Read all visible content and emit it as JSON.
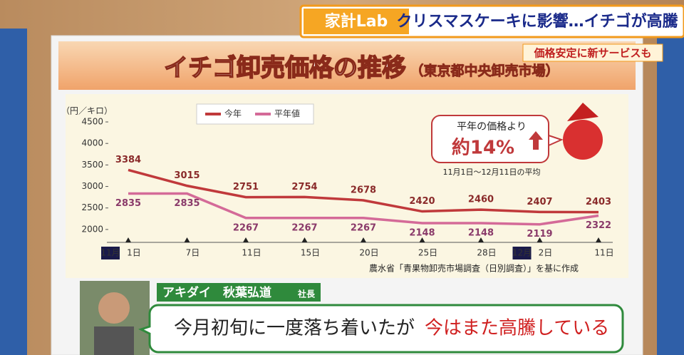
{
  "banner": {
    "logo": "家計Lab",
    "headline": "クリスマスケーキに影響…イチゴが高騰",
    "subheadline": "価格安定に新サービスも"
  },
  "chart_data": {
    "type": "line",
    "title": "イチゴ卸売価格の推移",
    "subtitle": "（東京都中央卸売市場）",
    "y_label": "（円／キロ）",
    "categories": [
      "1日",
      "7日",
      "11日",
      "15日",
      "20日",
      "25日",
      "28日",
      "2日",
      "11日"
    ],
    "months": [
      "11月",
      null,
      null,
      null,
      null,
      null,
      null,
      "12月",
      null
    ],
    "series": [
      {
        "name": "今年",
        "color": "#c0393b",
        "values": [
          3384,
          3015,
          2751,
          2754,
          2678,
          2420,
          2460,
          2407,
          2403
        ]
      },
      {
        "name": "平年値",
        "color": "#d46a98",
        "values": [
          2835,
          2835,
          2267,
          2267,
          2267,
          2148,
          2148,
          2119,
          2322
        ]
      }
    ],
    "ylim": [
      1700,
      4600
    ],
    "yticks": [
      2000,
      2500,
      3000,
      3500,
      4000,
      4500
    ],
    "grid": false,
    "callout": {
      "lead": "平年の価格より",
      "figure": "約14%",
      "note": "11月1日～12月11日の平均"
    },
    "source": "農水省「青果物卸売市場調査（日別調査）」を基に作成"
  },
  "interview": {
    "name": "アキダイ　秋葉弘道",
    "role": "社長",
    "quote_start": "今月初旬に一度落ち着いたが",
    "quote_end": "今はまた高騰している"
  }
}
